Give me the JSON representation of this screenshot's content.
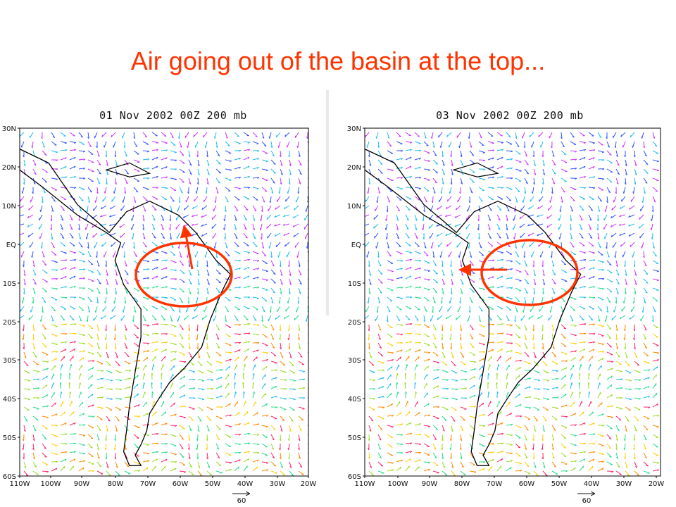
{
  "slide": {
    "title": "Air going out of the basin at the top..."
  },
  "panels": [
    {
      "title": "01 Nov 2002 00Z 200 mb",
      "lat_labels": [
        "30N",
        "20N",
        "10N",
        "EQ",
        "10S",
        "20S",
        "30S",
        "40S",
        "50S",
        "60S"
      ],
      "lon_labels": [
        "110W",
        "100W",
        "90W",
        "80W",
        "70W",
        "60W",
        "50W",
        "40W",
        "30W",
        "20W"
      ],
      "reference_vector": "60",
      "annotation": {
        "shape": "ellipse",
        "arrow_direction": "north",
        "color": "#ff3300"
      }
    },
    {
      "title": "03 Nov 2002 00Z 200 mb",
      "lat_labels": [
        "30N",
        "20N",
        "10N",
        "EQ",
        "10S",
        "20S",
        "30S",
        "40S",
        "50S",
        "60S"
      ],
      "lon_labels": [
        "110W",
        "100W",
        "90W",
        "80W",
        "70W",
        "60W",
        "50W",
        "40W",
        "30W",
        "20W"
      ],
      "reference_vector": "60",
      "annotation": {
        "shape": "ellipse",
        "arrow_direction": "west",
        "color": "#ff3300"
      }
    }
  ],
  "colors": {
    "title": "#ff3300",
    "annotation": "#ff3300",
    "wind_speed_scale": [
      "#cc33ff",
      "#3355ff",
      "#22bbee",
      "#22dd88",
      "#99dd22",
      "#ffcc00",
      "#ff8800",
      "#ff2266"
    ]
  }
}
